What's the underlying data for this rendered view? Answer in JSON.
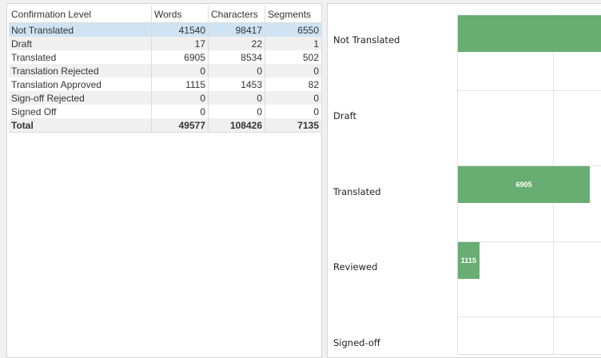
{
  "table": {
    "headers": [
      "Confirmation Level",
      "Words",
      "Characters",
      "Segments"
    ],
    "rows": [
      {
        "label": "Not Translated",
        "words": "41540",
        "characters": "98417",
        "segments": "6550"
      },
      {
        "label": "Draft",
        "words": "17",
        "characters": "22",
        "segments": "1"
      },
      {
        "label": "Translated",
        "words": "6905",
        "characters": "8534",
        "segments": "502"
      },
      {
        "label": "Translation Rejected",
        "words": "0",
        "characters": "0",
        "segments": "0"
      },
      {
        "label": "Translation Approved",
        "words": "1115",
        "characters": "1453",
        "segments": "82"
      },
      {
        "label": "Sign-off Rejected",
        "words": "0",
        "characters": "0",
        "segments": "0"
      },
      {
        "label": "Signed Off",
        "words": "0",
        "characters": "0",
        "segments": "0"
      }
    ],
    "total": {
      "label": "Total",
      "words": "49577",
      "characters": "108426",
      "segments": "7135"
    }
  },
  "chart_data": {
    "type": "bar",
    "orientation": "horizontal",
    "categories": [
      "Not Translated",
      "Draft",
      "Translated",
      "Reviewed",
      "Signed-off"
    ],
    "values": [
      41540,
      17,
      6905,
      1115,
      0
    ],
    "data_labels": [
      "",
      "",
      "6905",
      "1115",
      ""
    ],
    "gridline_step": 5000,
    "bar_color": "#68ae72"
  }
}
